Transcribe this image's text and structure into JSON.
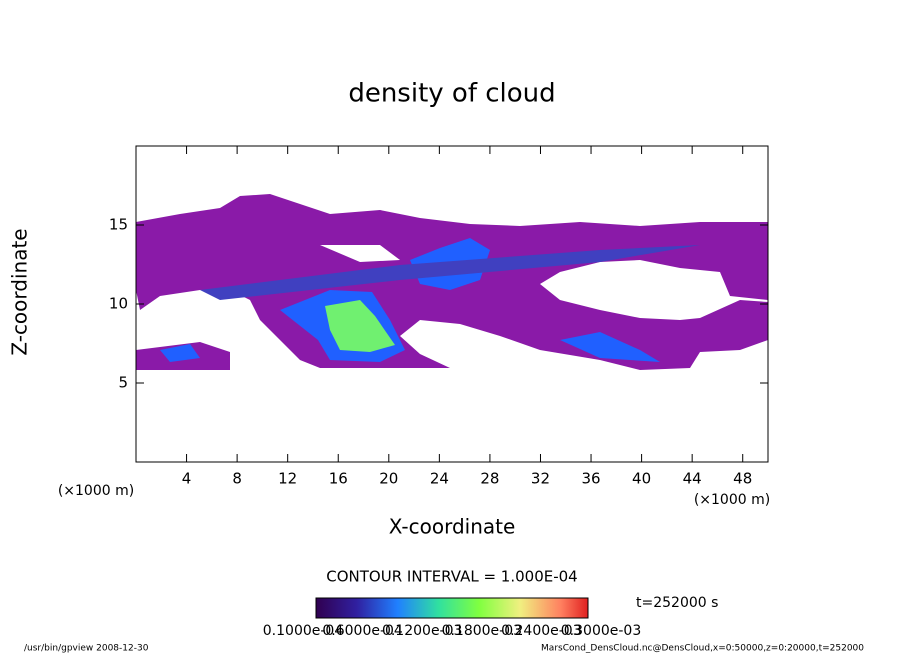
{
  "chart_data": {
    "type": "contour",
    "title": "density of cloud",
    "xlabel": "X-coordinate",
    "ylabel": "Z-coordinate",
    "xunit_left": "(×1000 m)",
    "xunit_right": "(×1000 m)",
    "xlim": [
      0,
      50
    ],
    "ylim": [
      0,
      20
    ],
    "xticks": [
      4,
      8,
      12,
      16,
      20,
      24,
      28,
      32,
      36,
      40,
      44,
      48
    ],
    "yticks": [
      5,
      10,
      15
    ],
    "contour_interval": "CONTOUR INTERVAL = 1.000E-04",
    "time_label": "t=252000 s",
    "colorbar_labels": [
      "0.1000e-04",
      "0.6000e-04",
      "0.1200e-03",
      "0.1800e-03",
      "0.2400e-03",
      "0.3000e-03"
    ],
    "footer_left": "/usr/bin/gpview   2008-12-30",
    "footer_right": "MarsCond_DensCloud.nc@DensCloud,x=0:50000,z=0:20000,t=252000"
  }
}
